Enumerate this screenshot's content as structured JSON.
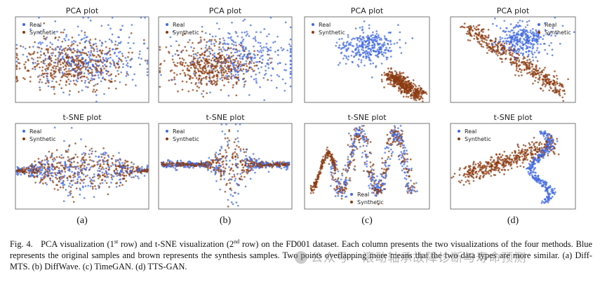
{
  "chart_data": [
    {
      "panel": "a",
      "type": "scatter",
      "title": "PCA plot",
      "legend": [
        "Real",
        "Synthetic"
      ],
      "legend_loc": "top-left",
      "pattern": "pca_blob",
      "colors": {
        "real": "#4169e1",
        "synthetic": "#8b3a0f"
      }
    },
    {
      "panel": "b",
      "type": "scatter",
      "title": "PCA plot",
      "legend": [
        "Real",
        "Synthetic"
      ],
      "legend_loc": "top-left",
      "pattern": "pca_blob_shifted",
      "colors": {
        "real": "#4169e1",
        "synthetic": "#8b3a0f"
      }
    },
    {
      "panel": "c",
      "type": "scatter",
      "title": "PCA plot",
      "legend": [
        "Real",
        "Synthetic"
      ],
      "legend_loc": "top-left",
      "pattern": "pca_separated",
      "colors": {
        "real": "#4169e1",
        "synthetic": "#8b3a0f"
      }
    },
    {
      "panel": "d",
      "type": "scatter",
      "title": "PCA plot",
      "legend": [
        "Real",
        "Synthetic"
      ],
      "legend_loc": "top-right",
      "pattern": "pca_diagonal",
      "colors": {
        "real": "#4169e1",
        "synthetic": "#8b3a0f"
      }
    },
    {
      "panel": "a",
      "type": "scatter",
      "title": "t-SNE plot",
      "legend": [
        "Real",
        "Synthetic"
      ],
      "legend_loc": "top-left",
      "pattern": "tsne_diamond",
      "colors": {
        "real": "#4169e1",
        "synthetic": "#8b3a0f"
      }
    },
    {
      "panel": "b",
      "type": "scatter",
      "title": "t-SNE plot",
      "legend": [
        "Real",
        "Synthetic"
      ],
      "legend_loc": "top-left",
      "pattern": "tsne_line",
      "colors": {
        "real": "#4169e1",
        "synthetic": "#8b3a0f"
      }
    },
    {
      "panel": "c",
      "type": "scatter",
      "title": "t-SNE plot",
      "legend": [
        "Real",
        "Synthetic"
      ],
      "legend_loc": "bottom-center",
      "pattern": "tsne_wave",
      "colors": {
        "real": "#4169e1",
        "synthetic": "#8b3a0f"
      }
    },
    {
      "panel": "d",
      "type": "scatter",
      "title": "t-SNE plot",
      "legend": [
        "Real",
        "Synthetic"
      ],
      "legend_loc": "top-left",
      "pattern": "tsne_split",
      "colors": {
        "real": "#4169e1",
        "synthetic": "#8b3a0f"
      }
    }
  ],
  "sub_labels": [
    "(a)",
    "(b)",
    "(c)",
    "(d)"
  ],
  "caption": {
    "prefix": "Fig. 4.   PCA visualization (1",
    "sup1": "st",
    "mid1": " row) and t-SNE visualization (2",
    "sup2": "nd",
    "rest": " row) on the FD001 dataset. Each column presents the two visualizations of the four methods. Blue represents the original samples and brown represents the synthesis samples. Two points overlapping more means that the two data types are more similar. (a) Diff-MTS. (b) DiffWave. (c) TimeGAN. (d) TTS-GAN."
  },
  "watermark": "公众号 · 滚动轴承故障诊断与寿命预测"
}
